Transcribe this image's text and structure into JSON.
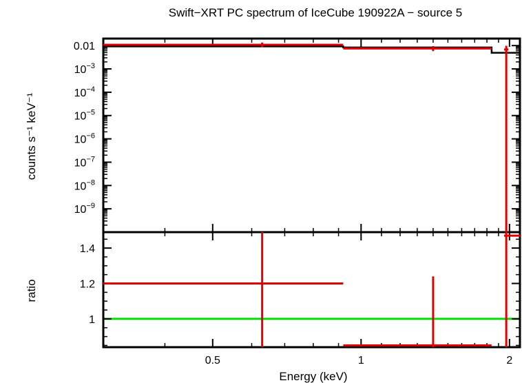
{
  "chart_data": {
    "type": "scatter",
    "title": "Swift−XRT PC spectrum of IceCube 190922A − source 5",
    "xlabel": "Energy (keV)",
    "xscale": "log",
    "xlim": [
      0.3,
      2.1
    ],
    "x_ticks": [
      {
        "value": 0.5,
        "label": "0.5"
      },
      {
        "value": 1,
        "label": "1"
      },
      {
        "value": 2,
        "label": "2"
      }
    ],
    "colors": {
      "data": "#e00000",
      "model": "#000000",
      "ratio_reference": "#00dd00",
      "frame": "#000000"
    },
    "panels": [
      {
        "name": "spectrum",
        "ylabel": "counts s⁻¹ keV⁻¹",
        "yscale": "log",
        "ylim": [
          1e-10,
          0.02
        ],
        "y_ticks": [
          {
            "value": 0.01,
            "base": "0.01",
            "exp": ""
          },
          {
            "value": 0.001,
            "base": "10",
            "exp": "−3"
          },
          {
            "value": 0.0001,
            "base": "10",
            "exp": "−4"
          },
          {
            "value": 1e-05,
            "base": "10",
            "exp": "−5"
          },
          {
            "value": 1e-06,
            "base": "10",
            "exp": "−6"
          },
          {
            "value": 1e-07,
            "base": "10",
            "exp": "−7"
          },
          {
            "value": 1e-08,
            "base": "10",
            "exp": "−8"
          },
          {
            "value": 1e-09,
            "base": "10",
            "exp": "−9"
          }
        ],
        "data_points": [
          {
            "x": 0.63,
            "xlo": 0.3,
            "xhi": 0.92,
            "y": 0.0108,
            "ylo": 0.0085,
            "yhi": 0.0135
          },
          {
            "x": 1.4,
            "xlo": 0.92,
            "xhi": 1.84,
            "y": 0.0075,
            "ylo": 0.0058,
            "yhi": 0.0095
          },
          {
            "x": 1.97,
            "xlo": 1.95,
            "xhi": 1.99,
            "y": 0.0068,
            "ylo": 1e-10,
            "yhi": 0.0098
          }
        ],
        "model_steps": [
          {
            "xlo": 0.3,
            "xhi": 0.92,
            "y": 0.0092
          },
          {
            "xlo": 0.92,
            "xhi": 1.84,
            "y": 0.0083
          },
          {
            "xlo": 1.84,
            "xhi": 2.1,
            "y": 0.0049
          }
        ]
      },
      {
        "name": "ratio",
        "ylabel": "ratio",
        "yscale": "linear",
        "ylim": [
          0.84,
          1.49
        ],
        "y_ticks": [
          {
            "value": 1,
            "label": "1"
          },
          {
            "value": 1.2,
            "label": "1.2"
          },
          {
            "value": 1.4,
            "label": "1.4"
          }
        ],
        "reference_line": 1,
        "data_points": [
          {
            "x": 0.63,
            "xlo": 0.3,
            "xhi": 0.92,
            "y": 1.2,
            "ylo": 0.84,
            "yhi": 1.49
          },
          {
            "x": 1.4,
            "xlo": 0.92,
            "xhi": 1.84,
            "y": 0.85,
            "ylo": 0.84,
            "yhi": 1.24
          },
          {
            "x": 1.97,
            "xlo": 1.95,
            "xhi": 2.1,
            "y": 1.47,
            "ylo": 0.84,
            "yhi": 1.49
          }
        ]
      }
    ]
  }
}
